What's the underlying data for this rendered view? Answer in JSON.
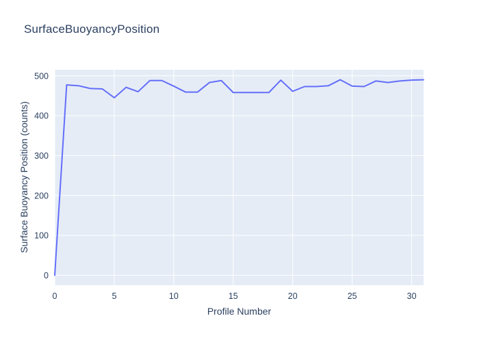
{
  "figure": {
    "title": "SurfaceBuoyancyPosition"
  },
  "colors": {
    "paper_background": "#ffffff",
    "plot_background": "#e5ecf6",
    "grid": "#ffffff",
    "line": "#636efa",
    "text": "#2a3f5f"
  },
  "chart_data": {
    "type": "line",
    "title": "SurfaceBuoyancyPosition",
    "xlabel": "Profile Number",
    "ylabel": "Surface Buoyancy Position (counts)",
    "x": [
      0,
      1,
      2,
      3,
      4,
      5,
      6,
      7,
      8,
      9,
      10,
      11,
      12,
      13,
      14,
      15,
      16,
      17,
      18,
      19,
      20,
      21,
      22,
      23,
      24,
      25,
      26,
      27,
      28,
      29,
      30,
      31
    ],
    "y": [
      0,
      477,
      475,
      468,
      467,
      445,
      471,
      460,
      488,
      488,
      474,
      459,
      459,
      483,
      488,
      458,
      458,
      458,
      458,
      489,
      461,
      473,
      473,
      475,
      490,
      474,
      473,
      487,
      483,
      487,
      489,
      490
    ],
    "x_ticks": [
      0,
      5,
      10,
      15,
      20,
      25,
      30
    ],
    "y_ticks": [
      0,
      100,
      200,
      300,
      400,
      500
    ],
    "xlim": [
      0,
      31
    ],
    "ylim": [
      -25,
      515
    ],
    "grid": true,
    "legend_position": "none",
    "line_color": "#636efa",
    "plot_background": "#e5ecf6",
    "grid_color": "#ffffff",
    "tick_color": "#2a3f5f"
  }
}
